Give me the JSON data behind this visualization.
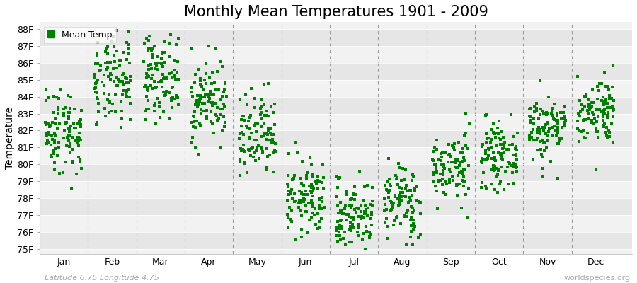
{
  "title": "Monthly Mean Temperatures 1901 - 2009",
  "ylabel": "Temperature",
  "xlabel_labels": [
    "Jan",
    "Feb",
    "Mar",
    "Apr",
    "May",
    "Jun",
    "Jul",
    "Aug",
    "Sep",
    "Oct",
    "Nov",
    "Dec"
  ],
  "ytick_labels": [
    "75F",
    "76F",
    "77F",
    "78F",
    "79F",
    "80F",
    "81F",
    "82F",
    "83F",
    "84F",
    "85F",
    "86F",
    "87F",
    "88F"
  ],
  "ytick_values": [
    75,
    76,
    77,
    78,
    79,
    80,
    81,
    82,
    83,
    84,
    85,
    86,
    87,
    88
  ],
  "ylim": [
    74.7,
    88.4
  ],
  "dot_color": "#008000",
  "dot_size": 6,
  "stripe_color_light": "#f2f2f2",
  "stripe_color_dark": "#e6e6e6",
  "legend_label": "Mean Temp",
  "footer_left": "Latitude 6.75 Longitude 4.75",
  "footer_right": "worldspecies.org",
  "title_fontsize": 15,
  "axis_fontsize": 9,
  "footer_fontsize": 8,
  "monthly_means": [
    82.0,
    84.8,
    85.2,
    83.8,
    81.5,
    78.0,
    77.0,
    77.8,
    79.8,
    80.5,
    82.2,
    83.2
  ],
  "monthly_stds": [
    1.3,
    1.3,
    1.2,
    1.2,
    1.3,
    1.1,
    1.0,
    1.1,
    1.0,
    0.9,
    1.0,
    1.0
  ],
  "n_years": 109,
  "seed": 42
}
